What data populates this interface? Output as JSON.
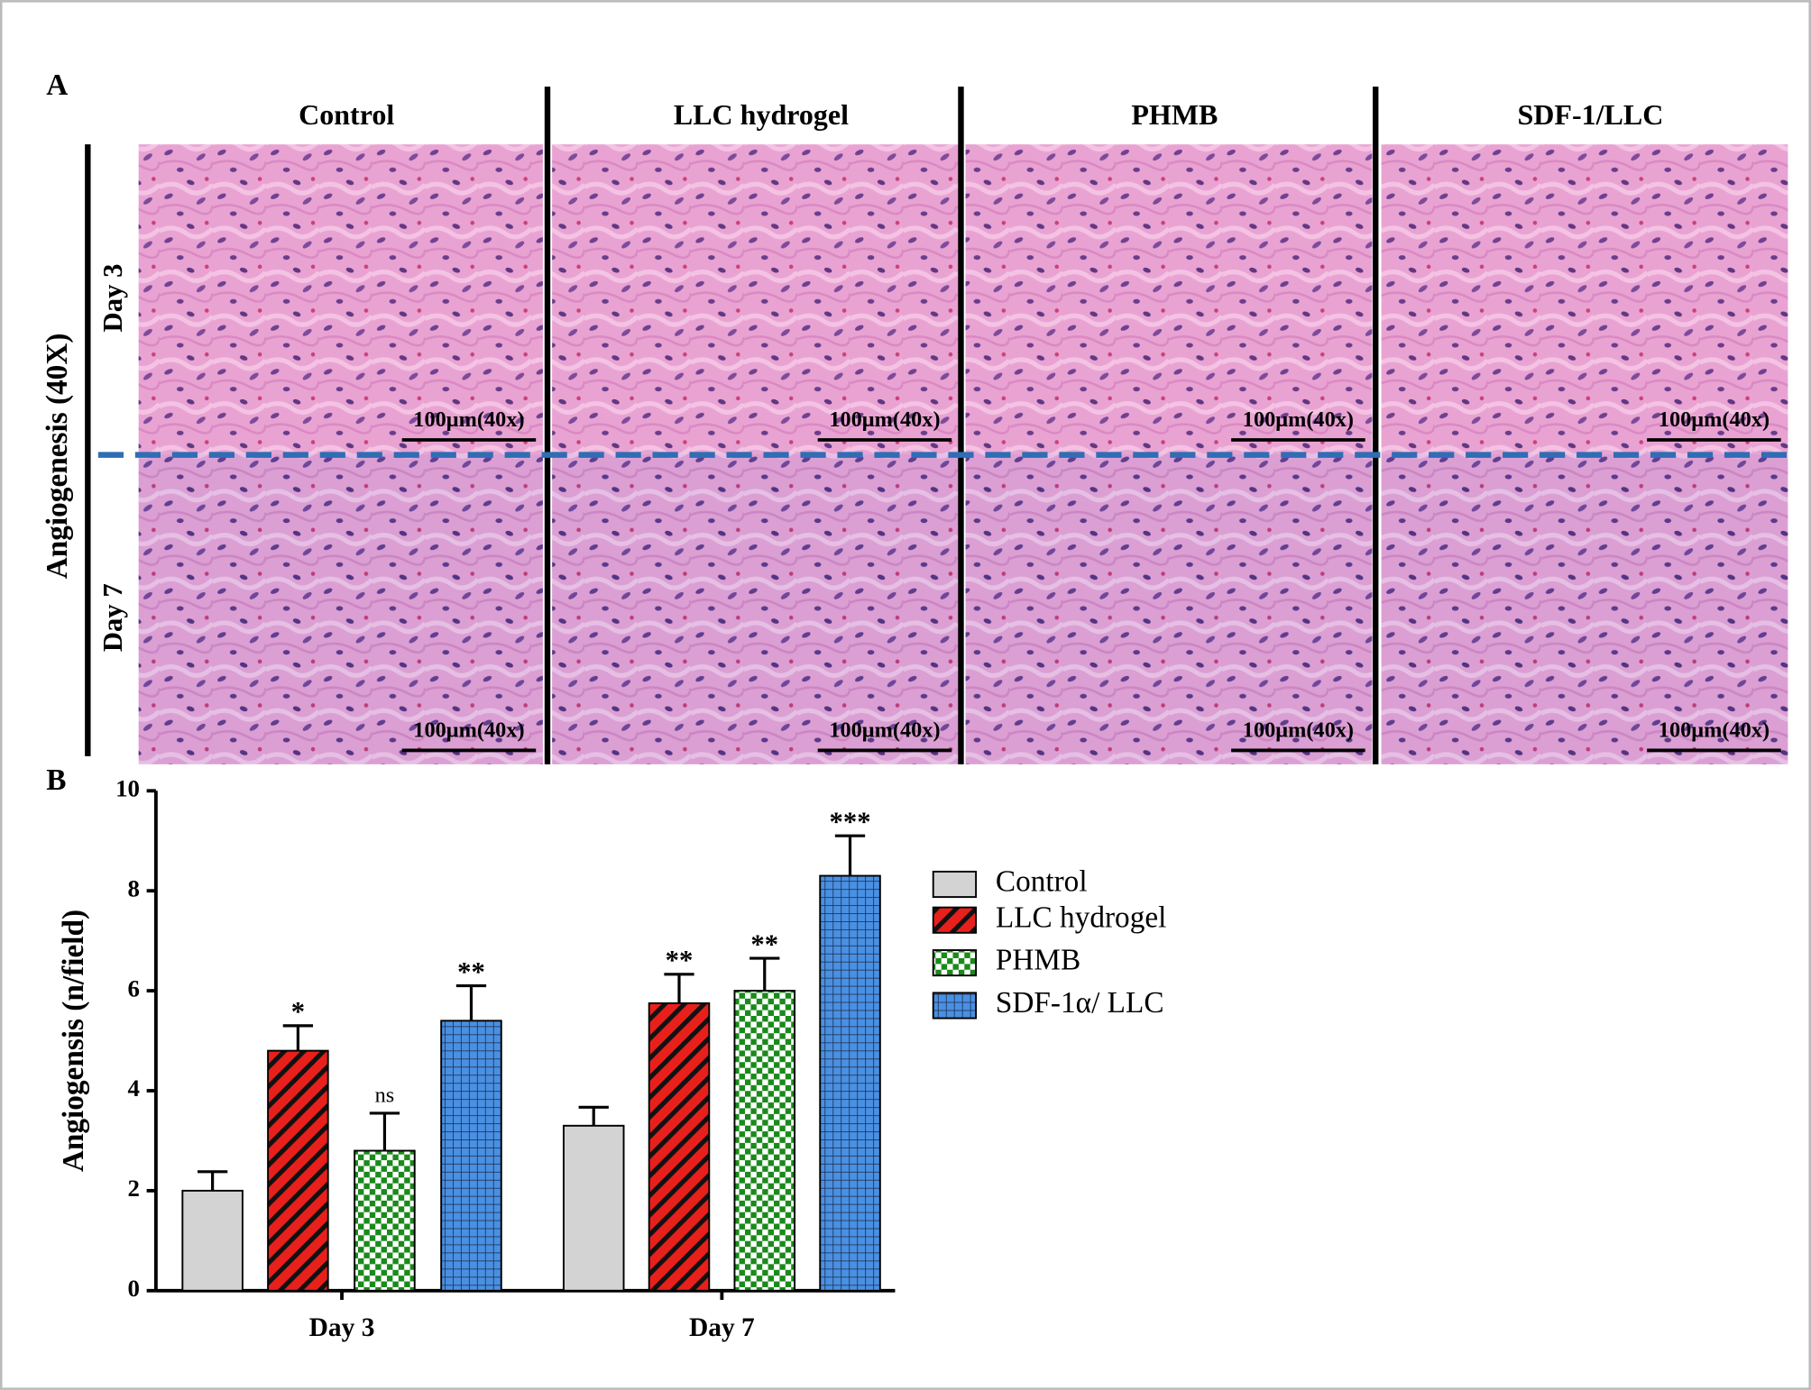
{
  "panel_a": {
    "label": "A",
    "columns": [
      "Control",
      "LLC hydrogel",
      "PHMB",
      "SDF-1/LLC"
    ],
    "rows": [
      "Day 3",
      "Day 7"
    ],
    "row_group_label": "Angiogenesis (40X)",
    "scale_bar_label": "100μm(40x)"
  },
  "chart_data": {
    "type": "bar",
    "panel_label": "B",
    "y_label": "Angiogensis (n/field)",
    "categories": [
      "Day 3",
      "Day 7"
    ],
    "series": [
      {
        "name": "Control",
        "color": "#d3d3d3",
        "pattern": "solid",
        "values": [
          2.0,
          3.3
        ],
        "errors": [
          0.38,
          0.37
        ],
        "annotations": [
          null,
          null
        ]
      },
      {
        "name": "LLC hydrogel",
        "color": "#e8201c",
        "pattern": "stripes",
        "values": [
          4.8,
          5.75
        ],
        "errors": [
          0.5,
          0.58
        ],
        "annotations": [
          "*",
          "**"
        ]
      },
      {
        "name": "PHMB",
        "color": "#1a8a1a",
        "pattern": "checker",
        "values": [
          2.8,
          6.0
        ],
        "errors": [
          0.75,
          0.65
        ],
        "annotations": [
          "ns",
          "**"
        ]
      },
      {
        "name": "SDF-1α/ LLC",
        "color": "#4a90e2",
        "pattern": "grid",
        "values": [
          5.4,
          8.3
        ],
        "errors": [
          0.7,
          0.8
        ],
        "annotations": [
          "**",
          "***"
        ]
      }
    ],
    "ylim": [
      0,
      10
    ],
    "yticks": [
      0,
      2,
      4,
      6,
      8,
      10
    ],
    "legend": "right"
  }
}
